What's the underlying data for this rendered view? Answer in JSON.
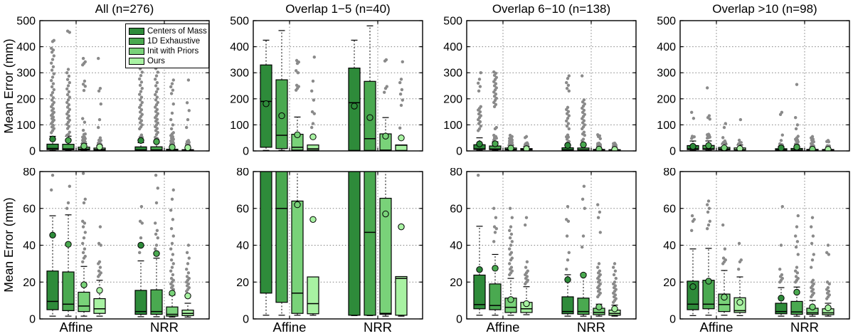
{
  "chart_data": {
    "type": "boxplot-grid",
    "ylabel": "Mean Error (mm)",
    "groups": [
      "Affine",
      "NRR"
    ],
    "methods": [
      {
        "name": "Centers of Mass",
        "color": "#2e8b3a"
      },
      {
        "name": "1D Exhaustive",
        "color": "#4aa950"
      },
      {
        "name": "Init with Priors",
        "color": "#79d279"
      },
      {
        "name": "Ours",
        "color": "#a8f2a2"
      }
    ],
    "outlier_color": "#8a8a8a",
    "grid_color": "#808080",
    "legend_position": "inside first subplot, upper right",
    "rows": [
      {
        "ylim": [
          0,
          500
        ],
        "yticks": [
          0,
          100,
          200,
          300,
          400,
          500
        ],
        "show_group_labels": false,
        "show_titles": true
      },
      {
        "ylim": [
          0,
          80
        ],
        "yticks": [
          0,
          20,
          40,
          60,
          80
        ],
        "show_group_labels": true,
        "show_titles": false
      }
    ],
    "columns": [
      {
        "title": "All (n=276)",
        "boxes": {
          "Affine": [
            {
              "lo": 1.5,
              "q1": 5,
              "med": 9.5,
              "q3": 26,
              "hi": 56,
              "mean": 45.5,
              "outliers": [
                70,
                78,
                86,
                92,
                98,
                105,
                112,
                118,
                124,
                130,
                136,
                142,
                148,
                155,
                162,
                170,
                178,
                186,
                195,
                204,
                214,
                224,
                235,
                246,
                258,
                270,
                283,
                296,
                310,
                323,
                337,
                351,
                365,
                379,
                387,
                394,
                420,
                424
              ]
            },
            {
              "lo": 1.5,
              "q1": 4.5,
              "med": 8,
              "q3": 25.5,
              "hi": 56.5,
              "mean": 40.5,
              "outliers": [
                60,
                63,
                72,
                86,
                94,
                102,
                110,
                118,
                126,
                134,
                142,
                150,
                159,
                168,
                177,
                186,
                196,
                206,
                216,
                227,
                238,
                250,
                262,
                274,
                287,
                300,
                313,
                455,
                460
              ]
            },
            {
              "lo": 1.5,
              "q1": 4,
              "med": 7,
              "q3": 14.5,
              "hi": 28.5,
              "mean": 18.5,
              "outliers": [
                31,
                33,
                34,
                36,
                38,
                41,
                44,
                47,
                50,
                52,
                53,
                63,
                65,
                79,
                110,
                124,
                232,
                248,
                256,
                268,
                330,
                336,
                342,
                355
              ]
            },
            {
              "lo": 1.5,
              "q1": 3,
              "med": 5.5,
              "q3": 11,
              "hi": 21,
              "mean": 15.5,
              "outliers": [
                23,
                24,
                25,
                26,
                28,
                30,
                31,
                40,
                41,
                50,
                90,
                120,
                180,
                230,
                240,
                355
              ]
            }
          ],
          "NRR": [
            {
              "lo": 1.2,
              "q1": 2.5,
              "med": 4,
              "q3": 15.5,
              "hi": 31.5,
              "mean": 40,
              "outliers": [
                36,
                44,
                52,
                53,
                61,
                85,
                92,
                100,
                108,
                116,
                124,
                132,
                140,
                149,
                158,
                167,
                176,
                186,
                196,
                206,
                217,
                228,
                240,
                252,
                264,
                276,
                289,
                302,
                315,
                328
              ]
            },
            {
              "lo": 1.2,
              "q1": 2.5,
              "med": 4,
              "q3": 15.8,
              "hi": 33,
              "mean": 35.5,
              "outliers": [
                38,
                40,
                44,
                46,
                48,
                52,
                63,
                71,
                78,
                86,
                93,
                100,
                107,
                114,
                121,
                128,
                135,
                143,
                151,
                159,
                168,
                177,
                186,
                196,
                206,
                216,
                227,
                238,
                250,
                262,
                275,
                288,
                302,
                316,
                330,
                340
              ]
            },
            {
              "lo": 1,
              "q1": 1.5,
              "med": 2.5,
              "q3": 6.5,
              "hi": 13,
              "mean": 14,
              "outliers": [
                14,
                15,
                16,
                17,
                18,
                19,
                20,
                21,
                22,
                24,
                26,
                28,
                30,
                32,
                35,
                38,
                41,
                45,
                49,
                54,
                59,
                65,
                70,
                85,
                100,
                120,
                145,
                180,
                220,
                233,
                246,
                258,
                272,
                340
              ]
            },
            {
              "lo": 1,
              "q1": 1.8,
              "med": 3,
              "q3": 4.8,
              "hi": 8.5,
              "mean": 12.5,
              "outliers": [
                15,
                16,
                17,
                18,
                19,
                20,
                21,
                22,
                23,
                25,
                27,
                30,
                33,
                36,
                40,
                90,
                120,
                155,
                185,
                272,
                338
              ]
            }
          ]
        }
      },
      {
        "title": "Overlap 1−5 (n=40)",
        "boxes": {
          "Affine": [
            {
              "lo": 2,
              "q1": 14,
              "med": 190,
              "q3": 330,
              "hi": 425,
              "mean": 181,
              "outliers": []
            },
            {
              "lo": 2,
              "q1": 9,
              "med": 60,
              "q3": 273,
              "hi": 462,
              "mean": 135,
              "outliers": []
            },
            {
              "lo": 2,
              "q1": 3,
              "med": 14,
              "q3": 64,
              "hi": 130,
              "mean": 62,
              "outliers": [
                233,
                240,
                247,
                252,
                300,
                308,
                336,
                341,
                347
              ]
            },
            {
              "lo": 2,
              "q1": 2.8,
              "med": 8.3,
              "q3": 22.8,
              "hi": 22.8,
              "mean": 54,
              "outliers": [
                90,
                105,
                143,
                150,
                195,
                230,
                268,
                360
              ]
            }
          ],
          "NRR": [
            {
              "lo": 1.8,
              "q1": 2,
              "med": 185,
              "q3": 318,
              "hi": 425,
              "mean": 172,
              "outliers": []
            },
            {
              "lo": 1.8,
              "q1": 2,
              "med": 47,
              "q3": 267,
              "hi": 480,
              "mean": 128,
              "outliers": []
            },
            {
              "lo": 1.5,
              "q1": 2.5,
              "med": 3,
              "q3": 65.5,
              "hi": 128,
              "mean": 57,
              "outliers": [
                225,
                240,
                247,
                345,
                350
              ]
            },
            {
              "lo": 1.5,
              "q1": 2,
              "med": 22,
              "q3": 23,
              "hi": 23,
              "mean": 50,
              "outliers": [
                88,
                175,
                195,
                218,
                235,
                262,
                275,
                342
              ]
            }
          ]
        }
      },
      {
        "title": "Overlap 6−10 (n=138)",
        "boxes": {
          "Affine": [
            {
              "lo": 2,
              "q1": 5.5,
              "med": 7.8,
              "q3": 23.8,
              "hi": 50.3,
              "mean": 26.8,
              "outliers": [
                78,
                85,
                95,
                105,
                112,
                120,
                128,
                135,
                142,
                150,
                157,
                163,
                170,
                230,
                247,
                260,
                275,
                300
              ]
            },
            {
              "lo": 2,
              "q1": 5,
              "med": 7.3,
              "q3": 19,
              "hi": 35,
              "mean": 27.5,
              "outliers": [
                42,
                47,
                49,
                50,
                55,
                60,
                85,
                90,
                170,
                178,
                186,
                194,
                202,
                210,
                218,
                226,
                234,
                242,
                250,
                258,
                266,
                274,
                282,
                290,
                298,
                303
              ]
            },
            {
              "lo": 2,
              "q1": 3.5,
              "med": 6.3,
              "q3": 11.3,
              "hi": 22,
              "mean": 10.5,
              "outliers": [
                24,
                25,
                26,
                27,
                28,
                30,
                32,
                33,
                35,
                36,
                38,
                40,
                42,
                44,
                46,
                48,
                50,
                55,
                60
              ]
            },
            {
              "lo": 2.3,
              "q1": 3.5,
              "med": 5.5,
              "q3": 9,
              "hi": 17.5,
              "mean": 8.3,
              "outliers": [
                19,
                20,
                21,
                22,
                23,
                24,
                25,
                26,
                28,
                31,
                51,
                55
              ]
            }
          ],
          "NRR": [
            {
              "lo": 1.5,
              "q1": 2.8,
              "med": 4,
              "q3": 12,
              "hi": 24,
              "mean": 21.3,
              "outliers": [
                27,
                32,
                36,
                45,
                53,
                54,
                61,
                85,
                95,
                105,
                115,
                125,
                135,
                143,
                151,
                159,
                167,
                230,
                240,
                252,
                262,
                278,
                288
              ]
            },
            {
              "lo": 1.5,
              "q1": 2.5,
              "med": 4,
              "q3": 11.3,
              "hi": 24.5,
              "mean": 23.8,
              "outliers": [
                39,
                45,
                60,
                65,
                72,
                85,
                92,
                100,
                108,
                116,
                124,
                132,
                140,
                148,
                156,
                164,
                172,
                180,
                188,
                196,
                288
              ]
            },
            {
              "lo": 1.5,
              "q1": 2.3,
              "med": 3.5,
              "q3": 5.8,
              "hi": 8,
              "mean": 6.5,
              "outliers": [
                12,
                13,
                14,
                15,
                16,
                17,
                18,
                19,
                20,
                21,
                22,
                23,
                24,
                25,
                26,
                28,
                30,
                47,
                55,
                58,
                62
              ]
            },
            {
              "lo": 1.5,
              "q1": 2,
              "med": 3,
              "q3": 4.8,
              "hi": 7.5,
              "mean": 5.5,
              "outliers": [
                9,
                10,
                11,
                12,
                13,
                14,
                15,
                16,
                17,
                18,
                19,
                20,
                22,
                24,
                26,
                28,
                30
              ]
            }
          ]
        }
      },
      {
        "title": "Overlap >10 (n=98)",
        "boxes": {
          "Affine": [
            {
              "lo": 1.8,
              "q1": 5,
              "med": 8,
              "q3": 20.5,
              "hi": 38,
              "mean": 17.5,
              "outliers": [
                48,
                53,
                54,
                56,
                125,
                148
              ]
            },
            {
              "lo": 2,
              "q1": 5.5,
              "med": 8,
              "q3": 21,
              "hi": 38.3,
              "mean": 20.5,
              "outliers": [
                49,
                51,
                53,
                58,
                60,
                62,
                64,
                122,
                128,
                135,
                242
              ]
            },
            {
              "lo": 2,
              "q1": 4,
              "med": 7.8,
              "q3": 13.5,
              "hi": 26.3,
              "mean": 11.8,
              "outliers": [
                30,
                31,
                32,
                33,
                38,
                51,
                90,
                105
              ]
            },
            {
              "lo": 1.8,
              "q1": 3.5,
              "med": 4.5,
              "q3": 11.5,
              "hi": 22.8,
              "mean": 9,
              "outliers": [
                27,
                31,
                32,
                41,
                120
              ]
            }
          ],
          "NRR": [
            {
              "lo": 1.5,
              "q1": 2.8,
              "med": 4,
              "q3": 8.5,
              "hi": 17,
              "mean": 11.3,
              "outliers": [
                20,
                21,
                22,
                23,
                24,
                27,
                40,
                61,
                140,
                148
              ]
            },
            {
              "lo": 1.5,
              "q1": 2.5,
              "med": 3.8,
              "q3": 9.5,
              "hi": 17.3,
              "mean": 14.5,
              "outliers": [
                20,
                21,
                22,
                23,
                25,
                26,
                28,
                35,
                39,
                42,
                45,
                50,
                56,
                85,
                100,
                128,
                255
              ]
            },
            {
              "lo": 1.5,
              "q1": 2.5,
              "med": 3.3,
              "q3": 5.8,
              "hi": 10,
              "mean": 6.5,
              "outliers": [
                12,
                13,
                14,
                15,
                16,
                17,
                18,
                19,
                20,
                21,
                28,
                32,
                35,
                41,
                45,
                50,
                55
              ]
            },
            {
              "lo": 1.5,
              "q1": 2.3,
              "med": 3.3,
              "q3": 5.5,
              "hi": 8.5,
              "mean": 6,
              "outliers": [
                11,
                12,
                13,
                14,
                15,
                16,
                17,
                19,
                20,
                35,
                36,
                40
              ]
            }
          ]
        }
      }
    ]
  }
}
